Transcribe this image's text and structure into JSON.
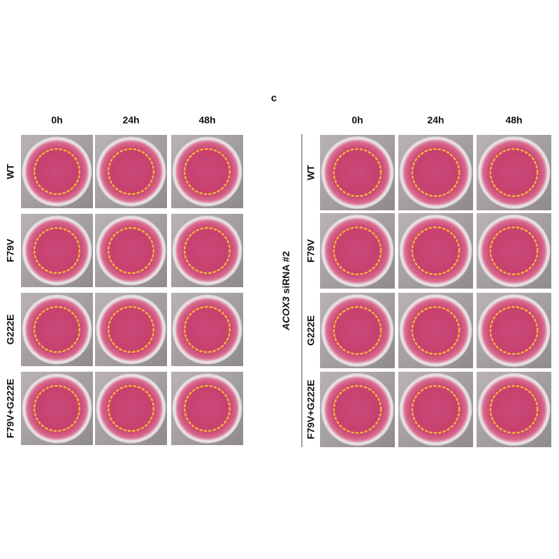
{
  "panel_label": "c",
  "panels": [
    {
      "columns": [
        "0h",
        "24h",
        "48h"
      ],
      "rows": [
        "WT",
        "F79V",
        "G222E",
        "F79V+G222E"
      ]
    },
    {
      "group_label": {
        "gene": "ACOX3",
        "suffix": "siRNA #2"
      },
      "columns": [
        "0h",
        "24h",
        "48h"
      ],
      "rows": [
        "WT",
        "F79V",
        "G222E",
        "F79V+G222E"
      ]
    }
  ]
}
